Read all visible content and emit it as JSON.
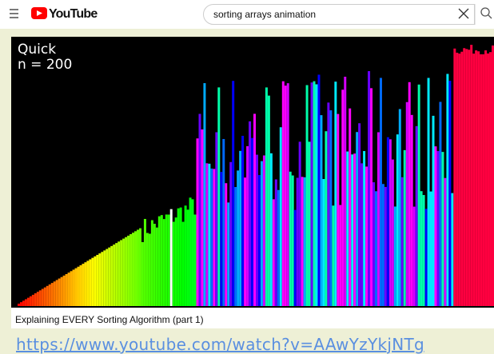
{
  "header": {
    "logo": "YouTube",
    "search_query": "sorting arrays animation"
  },
  "video": {
    "overlay": [
      "Quick",
      "n = 200"
    ],
    "title": "Explaining EVERY Sorting Algorithm (part 1)"
  },
  "link": "https://www.youtube.com/watch?v=AAwYzYkjNTg"
}
